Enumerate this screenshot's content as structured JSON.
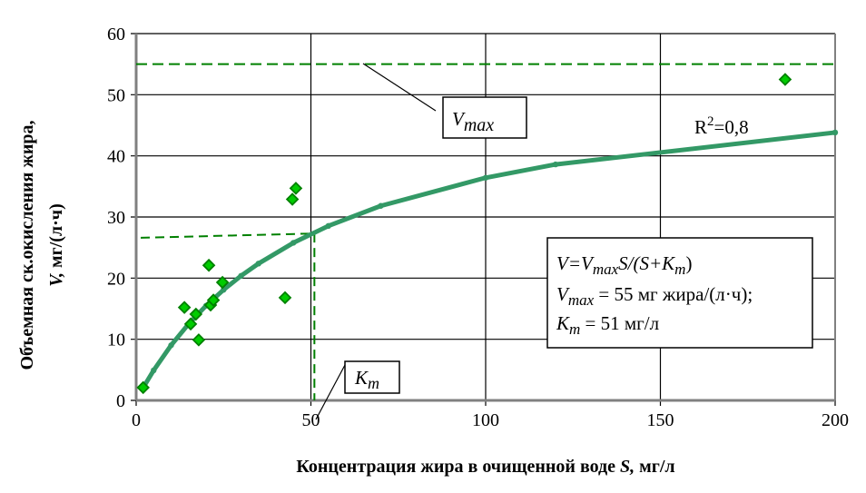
{
  "chart_data": {
    "type": "scatter",
    "xlabel_main": "Концентрация жира в очищенной воде ",
    "xlabel_var": "S,",
    "xlabel_unit": " мг/л",
    "ylabel_line1": "Объемная ск.окисления жира,",
    "ylabel_var": "V,",
    "ylabel_unit": " мг/(л·ч)",
    "xlim": [
      0,
      200
    ],
    "ylim": [
      0,
      60
    ],
    "xticks": [
      "0",
      "50",
      "100",
      "150",
      "200"
    ],
    "yticks": [
      "0",
      "10",
      "20",
      "30",
      "40",
      "50",
      "60"
    ],
    "grid": true,
    "series": [
      {
        "kind": "scatter",
        "marker": "diamond",
        "color": "#00cc00",
        "edge_color": "#008000",
        "x": [
          2,
          13.8,
          20.8,
          15.6,
          17.1,
          17.9,
          21.3,
          22.1,
          24.7,
          42.6,
          44.7,
          45.7,
          185.7
        ],
        "y": [
          2.1,
          15.2,
          22.1,
          12.5,
          14.1,
          9.9,
          15.6,
          16.4,
          19.3,
          16.8,
          32.9,
          34.7,
          52.5
        ]
      },
      {
        "kind": "line",
        "color": "#339966",
        "x": [
          2,
          5,
          10,
          15,
          20,
          25,
          30,
          35,
          45,
          55,
          70,
          100,
          120,
          200
        ],
        "y": [
          2.08,
          4.91,
          9.02,
          12.5,
          15.49,
          18.09,
          20.37,
          22.38,
          25.78,
          28.54,
          31.82,
          36.42,
          38.6,
          43.82
        ]
      }
    ],
    "reference_lines": {
      "color": "#008000",
      "vmax_y": 55,
      "km_x": 51,
      "km_y_left": 26.6,
      "km_y_right": 27.3
    },
    "annotations": {
      "vmax_label_main": "V",
      "vmax_label_sub": "max",
      "km_label_main": "K",
      "km_label_sub": "m",
      "r2_label_main": "R",
      "r2_label_sup": "2",
      "r2_label_rest": "=0,8",
      "formula_line1": [
        "V",
        "=V",
        "max",
        "S/(S+K",
        "m",
        ")"
      ],
      "formula_line2": [
        "V",
        "max",
        " = 55 мг жира/(л·ч);"
      ],
      "formula_line3": [
        "K",
        "m",
        " = 51 мг/л"
      ]
    }
  }
}
